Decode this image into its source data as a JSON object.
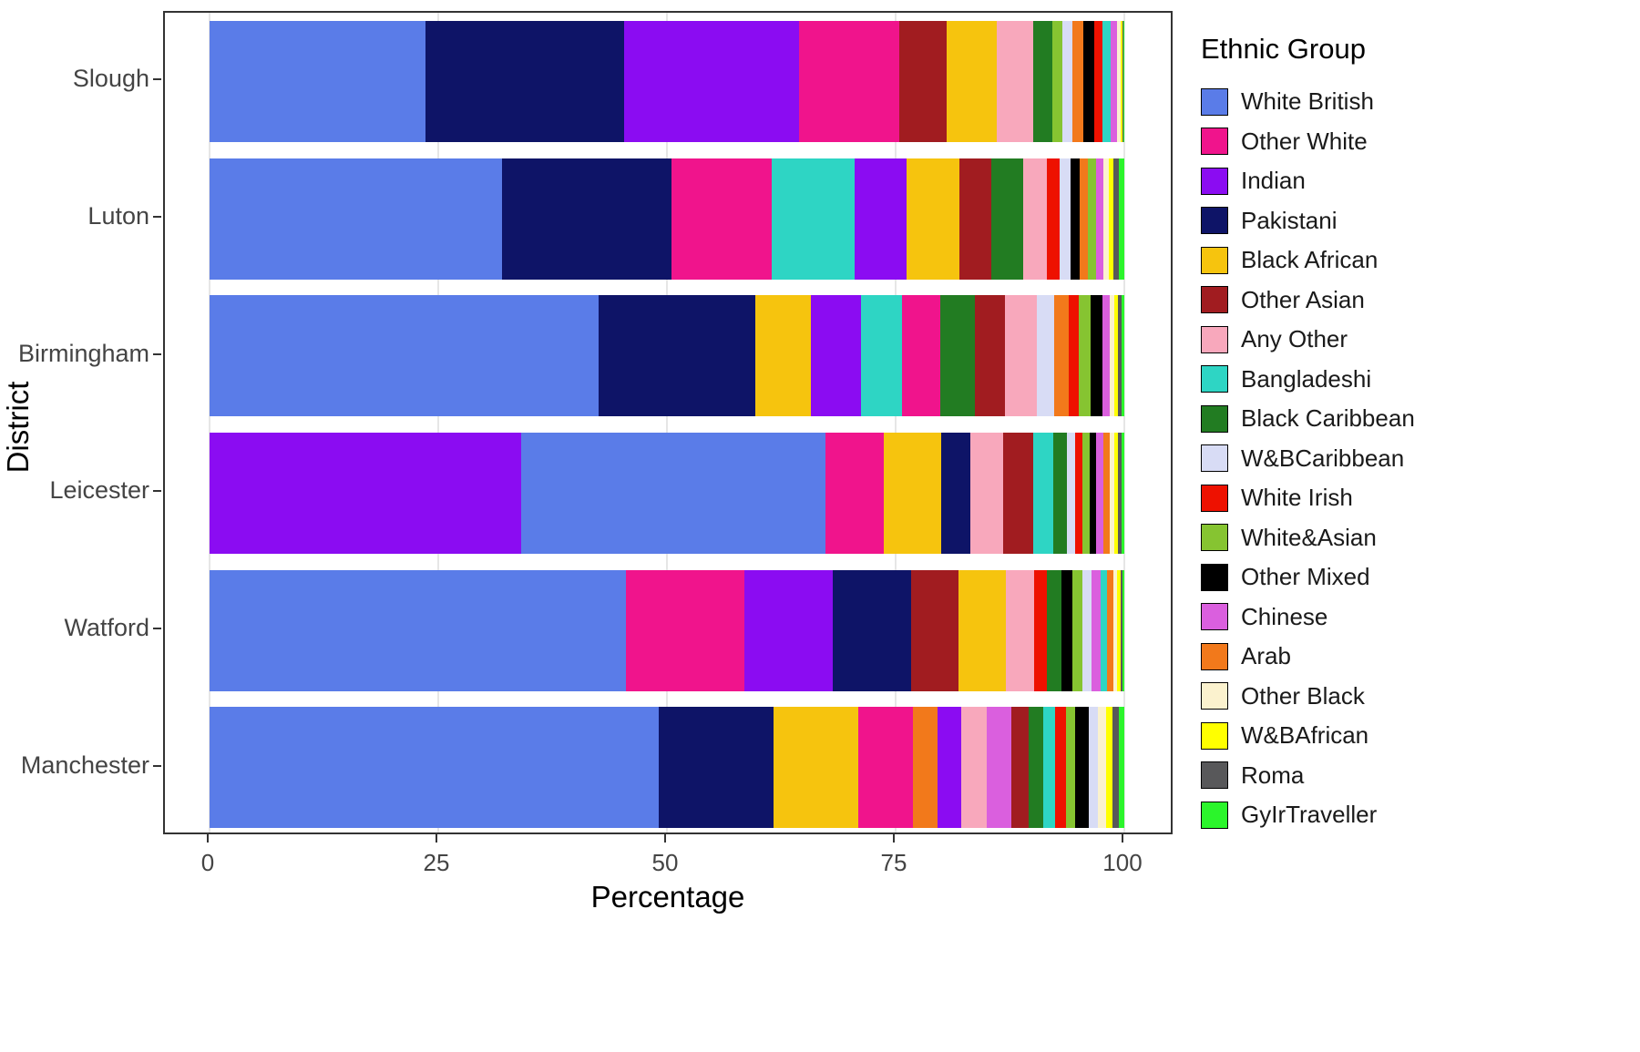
{
  "axes": {
    "x_label": "Percentage",
    "y_label": "District",
    "x_ticks": [
      0,
      25,
      50,
      75,
      100
    ],
    "xlim": [
      0,
      100
    ]
  },
  "legend": {
    "title": "Ethnic Group",
    "entries": [
      {
        "label": "White British",
        "color": "#5a7ce8"
      },
      {
        "label": "Other White",
        "color": "#f0148c"
      },
      {
        "label": "Indian",
        "color": "#8b0cf2"
      },
      {
        "label": "Pakistani",
        "color": "#0e1467"
      },
      {
        "label": "Black African",
        "color": "#f6c40e"
      },
      {
        "label": "Other Asian",
        "color": "#a11c20"
      },
      {
        "label": "Any Other",
        "color": "#f8a8bc"
      },
      {
        "label": "Bangladeshi",
        "color": "#2ed5c4"
      },
      {
        "label": "Black Caribbean",
        "color": "#227c22"
      },
      {
        "label": "W&BCaribbean",
        "color": "#d8dcf5"
      },
      {
        "label": "White Irish",
        "color": "#ee1100"
      },
      {
        "label": "White&Asian",
        "color": "#86c431"
      },
      {
        "label": "Other Mixed",
        "color": "#000000"
      },
      {
        "label": "Chinese",
        "color": "#da5fde"
      },
      {
        "label": "Arab",
        "color": "#f2791b"
      },
      {
        "label": "Other Black",
        "color": "#fbf2ce"
      },
      {
        "label": "W&BAfrican",
        "color": "#ffff00"
      },
      {
        "label": "Roma",
        "color": "#58585a"
      },
      {
        "label": "GyIrTraveller",
        "color": "#2bf52b"
      }
    ]
  },
  "chart_data": {
    "type": "bar",
    "orientation": "horizontal",
    "stacked": true,
    "title": "",
    "xlabel": "Percentage",
    "ylabel": "District",
    "xlim": [
      0,
      100
    ],
    "grid": "major-vertical",
    "legend_position": "right",
    "categories": [
      "Slough",
      "Luton",
      "Birmingham",
      "Leicester",
      "Watford",
      "Manchester"
    ],
    "colors": {
      "White British": "#5a7ce8",
      "Other White": "#f0148c",
      "Indian": "#8b0cf2",
      "Pakistani": "#0e1467",
      "Black African": "#f6c40e",
      "Other Asian": "#a11c20",
      "Any Other": "#f8a8bc",
      "Bangladeshi": "#2ed5c4",
      "Black Caribbean": "#227c22",
      "W&BCaribbean": "#d8dcf5",
      "White Irish": "#ee1100",
      "White&Asian": "#86c431",
      "Other Mixed": "#000000",
      "Chinese": "#da5fde",
      "Arab": "#f2791b",
      "Other Black": "#fbf2ce",
      "W&BAfrican": "#ffff00",
      "Roma": "#58585a",
      "GyIrTraveller": "#2bf52b"
    },
    "bars": [
      {
        "district": "Slough",
        "segments": [
          {
            "group": "White British",
            "value": 23.6
          },
          {
            "group": "Pakistani",
            "value": 21.7
          },
          {
            "group": "Indian",
            "value": 19.1
          },
          {
            "group": "Other White",
            "value": 11.0
          },
          {
            "group": "Other Asian",
            "value": 5.2
          },
          {
            "group": "Black African",
            "value": 5.5
          },
          {
            "group": "Any Other",
            "value": 3.9
          },
          {
            "group": "Black Caribbean",
            "value": 2.1
          },
          {
            "group": "White&Asian",
            "value": 1.1
          },
          {
            "group": "W&BCaribbean",
            "value": 1.1
          },
          {
            "group": "Arab",
            "value": 1.2
          },
          {
            "group": "Other Mixed",
            "value": 1.2
          },
          {
            "group": "White Irish",
            "value": 0.9
          },
          {
            "group": "Bangladeshi",
            "value": 0.9
          },
          {
            "group": "Chinese",
            "value": 0.7
          },
          {
            "group": "Other Black",
            "value": 0.4
          },
          {
            "group": "W&BAfrican",
            "value": 0.2
          },
          {
            "group": "Roma",
            "value": 0.1
          },
          {
            "group": "GyIrTraveller",
            "value": 0.1
          }
        ]
      },
      {
        "district": "Luton",
        "segments": [
          {
            "group": "White British",
            "value": 32.0
          },
          {
            "group": "Pakistani",
            "value": 18.5
          },
          {
            "group": "Other White",
            "value": 11.0
          },
          {
            "group": "Bangladeshi",
            "value": 9.0
          },
          {
            "group": "Indian",
            "value": 5.7
          },
          {
            "group": "Black African",
            "value": 5.8
          },
          {
            "group": "Other Asian",
            "value": 3.5
          },
          {
            "group": "Black Caribbean",
            "value": 3.5
          },
          {
            "group": "Any Other",
            "value": 2.5
          },
          {
            "group": "White Irish",
            "value": 1.4
          },
          {
            "group": "W&BCaribbean",
            "value": 1.2
          },
          {
            "group": "Other Mixed",
            "value": 1.0
          },
          {
            "group": "Arab",
            "value": 0.9
          },
          {
            "group": "White&Asian",
            "value": 0.9
          },
          {
            "group": "Chinese",
            "value": 0.8
          },
          {
            "group": "Other Black",
            "value": 0.6
          },
          {
            "group": "W&BAfrican",
            "value": 0.5
          },
          {
            "group": "Roma",
            "value": 0.6
          },
          {
            "group": "GyIrTraveller",
            "value": 0.6
          }
        ]
      },
      {
        "district": "Birmingham",
        "segments": [
          {
            "group": "White British",
            "value": 42.5
          },
          {
            "group": "Pakistani",
            "value": 17.2
          },
          {
            "group": "Black African",
            "value": 6.0
          },
          {
            "group": "Indian",
            "value": 5.5
          },
          {
            "group": "Bangladeshi",
            "value": 4.5
          },
          {
            "group": "Other White",
            "value": 4.2
          },
          {
            "group": "Black Caribbean",
            "value": 3.8
          },
          {
            "group": "Other Asian",
            "value": 3.3
          },
          {
            "group": "Any Other",
            "value": 3.4
          },
          {
            "group": "W&BCaribbean",
            "value": 1.9
          },
          {
            "group": "Arab",
            "value": 1.6
          },
          {
            "group": "White Irish",
            "value": 1.1
          },
          {
            "group": "White&Asian",
            "value": 1.3
          },
          {
            "group": "Other Mixed",
            "value": 1.3
          },
          {
            "group": "Chinese",
            "value": 0.8
          },
          {
            "group": "Other Black",
            "value": 0.5
          },
          {
            "group": "W&BAfrican",
            "value": 0.4
          },
          {
            "group": "Roma",
            "value": 0.4
          },
          {
            "group": "GyIrTraveller",
            "value": 0.3
          }
        ]
      },
      {
        "district": "Leicester",
        "segments": [
          {
            "group": "Indian",
            "value": 34.1
          },
          {
            "group": "White British",
            "value": 33.2
          },
          {
            "group": "Other White",
            "value": 6.4
          },
          {
            "group": "Black African",
            "value": 6.3
          },
          {
            "group": "Pakistani",
            "value": 3.2
          },
          {
            "group": "Any Other",
            "value": 3.6
          },
          {
            "group": "Other Asian",
            "value": 3.2
          },
          {
            "group": "Bangladeshi",
            "value": 2.2
          },
          {
            "group": "Black Caribbean",
            "value": 1.5
          },
          {
            "group": "W&BCaribbean",
            "value": 0.9
          },
          {
            "group": "White Irish",
            "value": 0.8
          },
          {
            "group": "White&Asian",
            "value": 0.8
          },
          {
            "group": "Other Mixed",
            "value": 0.7
          },
          {
            "group": "Chinese",
            "value": 0.8
          },
          {
            "group": "Arab",
            "value": 0.7
          },
          {
            "group": "Other Black",
            "value": 0.5
          },
          {
            "group": "W&BAfrican",
            "value": 0.4
          },
          {
            "group": "Roma",
            "value": 0.4
          },
          {
            "group": "GyIrTraveller",
            "value": 0.3
          }
        ]
      },
      {
        "district": "Watford",
        "segments": [
          {
            "group": "White British",
            "value": 45.5
          },
          {
            "group": "Other White",
            "value": 13.0
          },
          {
            "group": "Indian",
            "value": 9.6
          },
          {
            "group": "Pakistani",
            "value": 8.6
          },
          {
            "group": "Other Asian",
            "value": 5.2
          },
          {
            "group": "Black African",
            "value": 5.2
          },
          {
            "group": "Any Other",
            "value": 3.0
          },
          {
            "group": "White Irish",
            "value": 1.4
          },
          {
            "group": "Black Caribbean",
            "value": 1.6
          },
          {
            "group": "Other Mixed",
            "value": 1.2
          },
          {
            "group": "White&Asian",
            "value": 1.1
          },
          {
            "group": "W&BCaribbean",
            "value": 1.0
          },
          {
            "group": "Chinese",
            "value": 1.0
          },
          {
            "group": "Bangladeshi",
            "value": 0.7
          },
          {
            "group": "Arab",
            "value": 0.7
          },
          {
            "group": "Other Black",
            "value": 0.4
          },
          {
            "group": "W&BAfrican",
            "value": 0.4
          },
          {
            "group": "Roma",
            "value": 0.2
          },
          {
            "group": "GyIrTraveller",
            "value": 0.2
          }
        ]
      },
      {
        "district": "Manchester",
        "segments": [
          {
            "group": "White British",
            "value": 49.1
          },
          {
            "group": "Pakistani",
            "value": 12.6
          },
          {
            "group": "Black African",
            "value": 9.2
          },
          {
            "group": "Other White",
            "value": 6.0
          },
          {
            "group": "Arab",
            "value": 2.7
          },
          {
            "group": "Indian",
            "value": 2.6
          },
          {
            "group": "Any Other",
            "value": 2.8
          },
          {
            "group": "Chinese",
            "value": 2.7
          },
          {
            "group": "Other Asian",
            "value": 1.8
          },
          {
            "group": "Black Caribbean",
            "value": 1.6
          },
          {
            "group": "Bangladeshi",
            "value": 1.3
          },
          {
            "group": "White Irish",
            "value": 1.2
          },
          {
            "group": "White&Asian",
            "value": 1.0
          },
          {
            "group": "Other Mixed",
            "value": 1.5
          },
          {
            "group": "W&BCaribbean",
            "value": 1.0
          },
          {
            "group": "Other Black",
            "value": 0.9
          },
          {
            "group": "W&BAfrican",
            "value": 0.7
          },
          {
            "group": "Roma",
            "value": 0.7
          },
          {
            "group": "GyIrTraveller",
            "value": 0.6
          }
        ]
      }
    ]
  }
}
